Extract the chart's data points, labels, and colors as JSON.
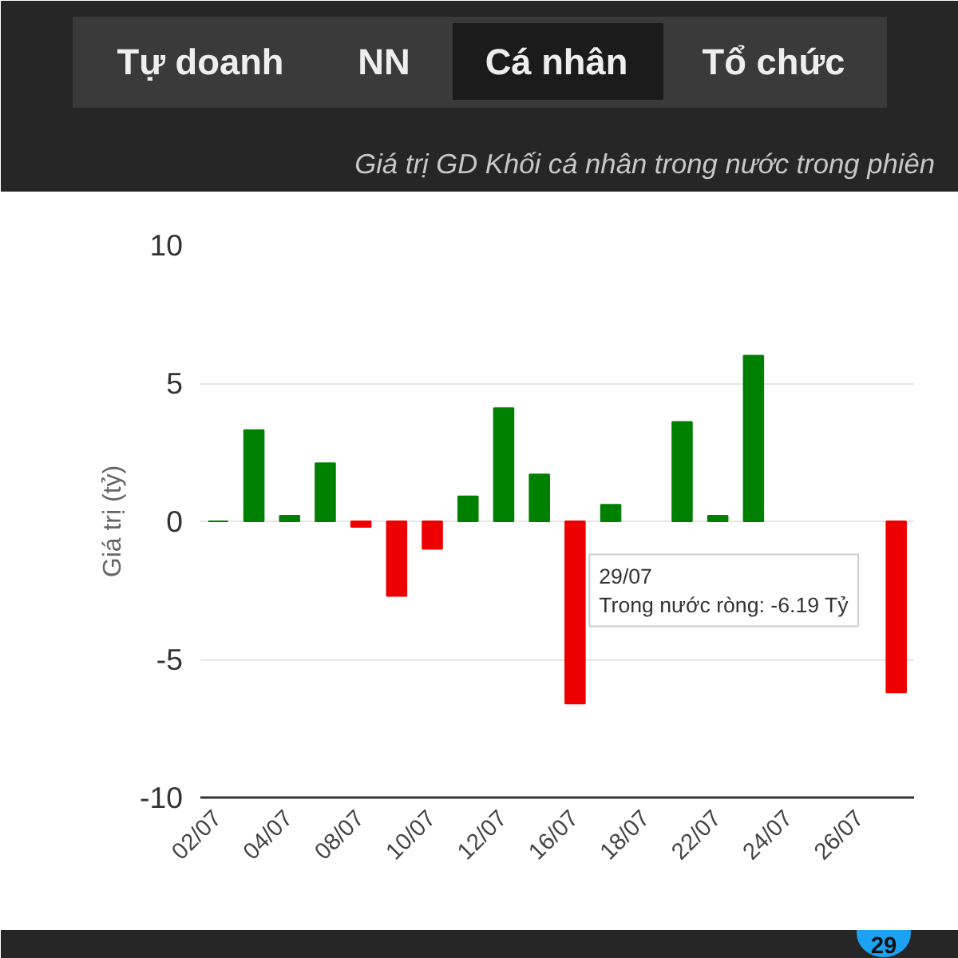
{
  "chart_data": {
    "type": "bar",
    "title": "Giá trị GD Khối cá nhân trong nước trong phiên",
    "ylabel": "Giá trị (tỷ)",
    "categories": [
      "02/07",
      null,
      "04/07",
      null,
      "08/07",
      null,
      "10/07",
      null,
      "12/07",
      null,
      "16/07",
      null,
      "18/07",
      null,
      "22/07",
      null,
      "24/07",
      null,
      "26/07",
      null
    ],
    "values": [
      0,
      3.3,
      0.2,
      2.1,
      -0.2,
      -2.7,
      -1.0,
      0.9,
      4.1,
      1.7,
      -6.6,
      0.6,
      null,
      3.6,
      0.2,
      6.0,
      null,
      null,
      null,
      -6.19
    ],
    "colors": [
      "#008000",
      "#008000",
      "#008000",
      "#008000",
      "#ee0000",
      "#ee0000",
      "#ee0000",
      "#008000",
      "#008000",
      "#008000",
      "#ee0000",
      "#008000",
      "#ee0000",
      "#008000",
      "#008000",
      "#008000",
      "#ee0000",
      "#ee0000",
      "#ee0000",
      "#ee0000"
    ],
    "ylim": [
      -10,
      10
    ],
    "yticks": [
      -10,
      -5,
      0,
      5,
      10
    ],
    "grid": "y",
    "annotations": [
      "Tự doanh",
      "NN",
      "Cá nhân",
      "Tổ chức",
      "29/07",
      "Trong nước ròng: -6.19 Tỷ",
      "29"
    ]
  }
}
